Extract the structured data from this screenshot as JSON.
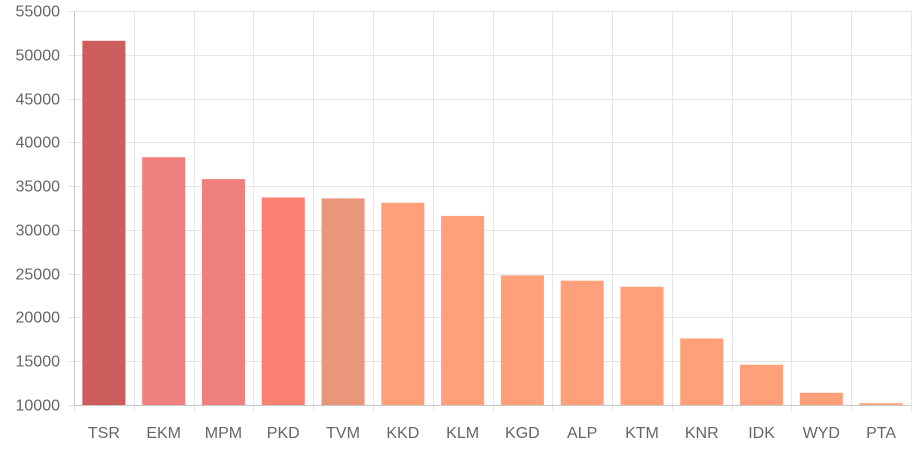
{
  "chart_data": {
    "type": "bar",
    "title": "",
    "xlabel": "",
    "ylabel": "",
    "ylim": [
      10000,
      55000
    ],
    "yticks": [
      10000,
      15000,
      20000,
      25000,
      30000,
      35000,
      40000,
      45000,
      50000,
      55000
    ],
    "grid": true,
    "legend": "none",
    "categories": [
      "TSR",
      "EKM",
      "MPM",
      "PKD",
      "TVM",
      "KKD",
      "KLM",
      "KGD",
      "ALP",
      "KTM",
      "KNR",
      "IDK",
      "WYD",
      "PTA"
    ],
    "values": [
      51600,
      38300,
      35800,
      33700,
      33600,
      33100,
      31600,
      24800,
      24200,
      23500,
      17600,
      14600,
      11400,
      10200
    ],
    "colors": [
      "#cd5c5c",
      "#f08080",
      "#f08080",
      "#fa8072",
      "#e9967a",
      "#ffa07a",
      "#ffa07a",
      "#ffa07a",
      "#ffa07a",
      "#ffa07a",
      "#ffa07a",
      "#ffa07a",
      "#ffa07a",
      "#ffa07a"
    ]
  }
}
